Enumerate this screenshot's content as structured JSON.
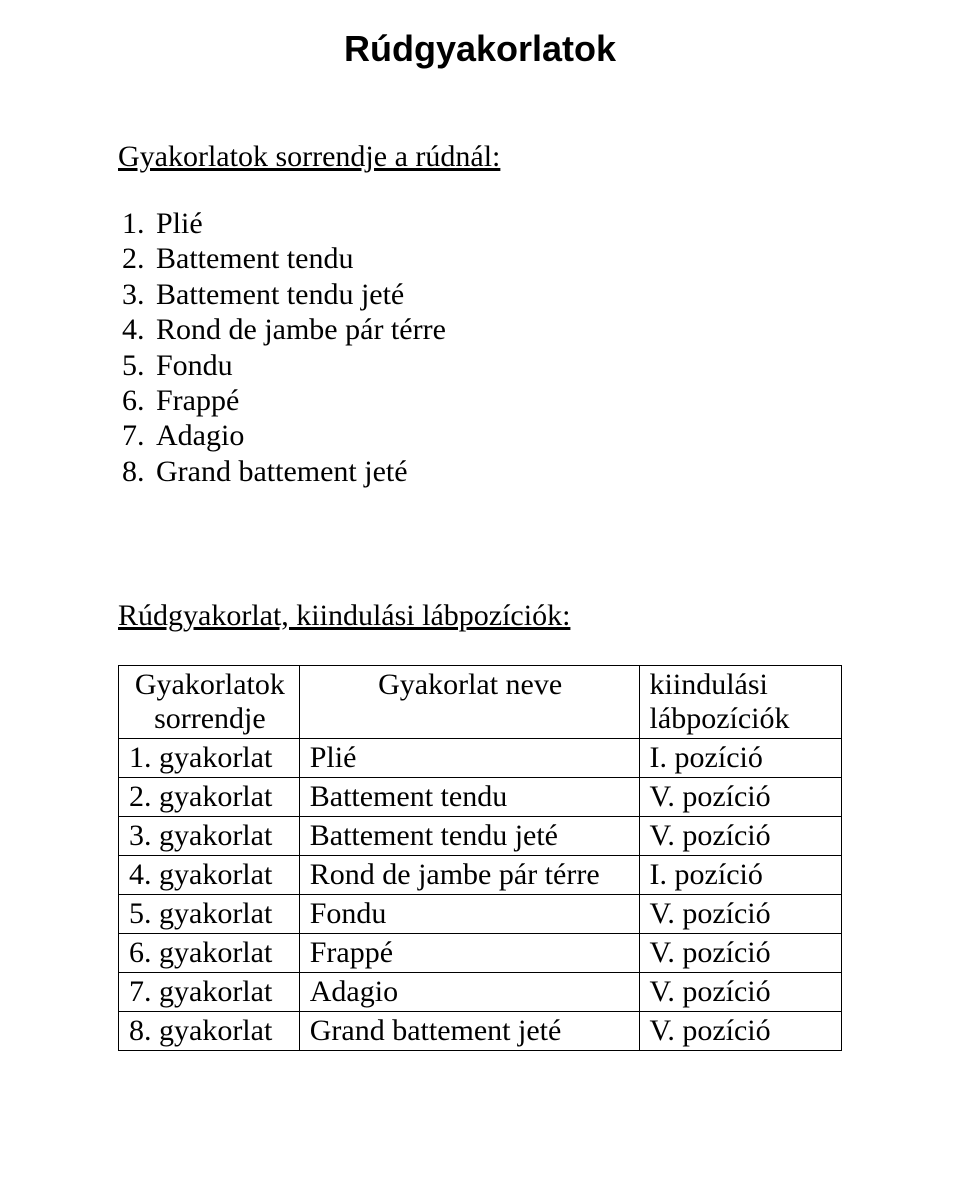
{
  "title": "Rúdgyakorlatok",
  "section1": {
    "heading": "Gyakorlatok sorrendje a rúdnál:",
    "items": [
      "Plié",
      "Battement tendu",
      "Battement tendu jeté",
      "Rond de jambe pár térre",
      "Fondu",
      "Frappé",
      "Adagio",
      "Grand battement jeté"
    ]
  },
  "section2": {
    "heading": "Rúdgyakorlat, kiindulási lábpozíciók:",
    "table": {
      "header": {
        "col0_line1": "Gyakorlatok",
        "col0_line2": "sorrendje",
        "col1": "Gyakorlat neve",
        "col2_line1": "kiindulási",
        "col2_line2": "lábpozíciók"
      },
      "rows": [
        {
          "c0": "1. gyakorlat",
          "c1": "Plié",
          "c2": "I. pozíció"
        },
        {
          "c0": "2. gyakorlat",
          "c1": "Battement tendu",
          "c2": "V. pozíció"
        },
        {
          "c0": "3. gyakorlat",
          "c1": "Battement tendu jeté",
          "c2": "V. pozíció"
        },
        {
          "c0": "4. gyakorlat",
          "c1": "Rond de jambe pár térre",
          "c2": "I. pozíció"
        },
        {
          "c0": "5. gyakorlat",
          "c1": "Fondu",
          "c2": "V. pozíció"
        },
        {
          "c0": "6. gyakorlat",
          "c1": "Frappé",
          "c2": "V. pozíció"
        },
        {
          "c0": "7. gyakorlat",
          "c1": "Adagio",
          "c2": "V. pozíció"
        },
        {
          "c0": "8. gyakorlat",
          "c1": "Grand battement jeté",
          "c2": "V. pozíció"
        }
      ]
    }
  }
}
